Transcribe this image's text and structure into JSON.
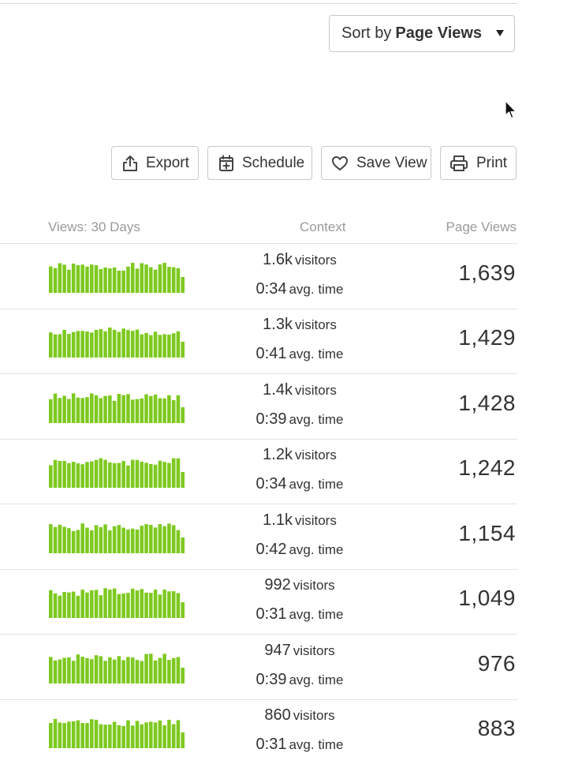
{
  "sort": {
    "prefix": "Sort by",
    "value": "Page Views"
  },
  "toolbar": {
    "export": "Export",
    "schedule": "Schedule",
    "save_view": "Save View",
    "print": "Print"
  },
  "headers": {
    "views": "Views: 30 Days",
    "context": "Context",
    "page_views": "Page Views"
  },
  "units": {
    "visitors": "visitors",
    "avg_time": "avg. time"
  },
  "colors": {
    "bar": "#7dc91f"
  },
  "rows": [
    {
      "visitors": "1.6k",
      "time": "0:34",
      "page_views": "1,639"
    },
    {
      "visitors": "1.3k",
      "time": "0:41",
      "page_views": "1,429"
    },
    {
      "visitors": "1.4k",
      "time": "0:39",
      "page_views": "1,428"
    },
    {
      "visitors": "1.2k",
      "time": "0:34",
      "page_views": "1,242"
    },
    {
      "visitors": "1.1k",
      "time": "0:42",
      "page_views": "1,154"
    },
    {
      "visitors": "992",
      "time": "0:31",
      "page_views": "1,049"
    },
    {
      "visitors": "947",
      "time": "0:39",
      "page_views": "976"
    },
    {
      "visitors": "860",
      "time": "0:31",
      "page_views": "883"
    }
  ]
}
